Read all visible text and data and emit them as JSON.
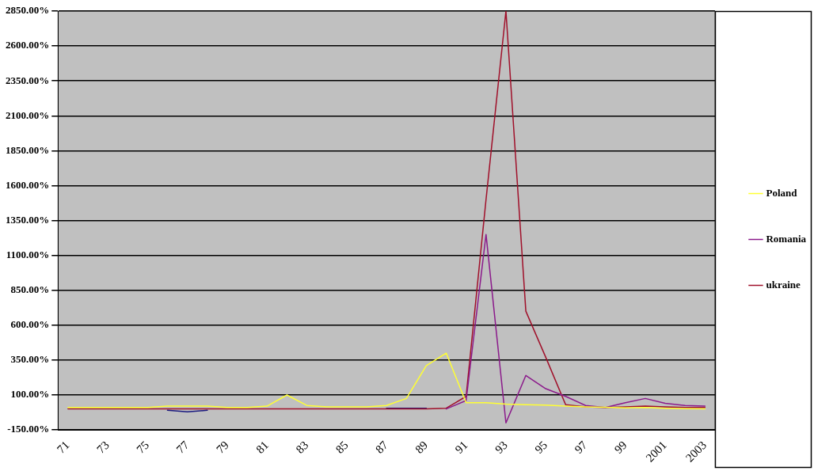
{
  "chart_data": {
    "type": "line",
    "categories": [
      "71",
      null,
      "73",
      null,
      "75",
      null,
      "77",
      null,
      "79",
      null,
      "81",
      null,
      "83",
      null,
      "85",
      null,
      "87",
      null,
      "89",
      null,
      "91",
      null,
      "93",
      null,
      "95",
      null,
      "97",
      null,
      "99",
      null,
      "2001",
      null,
      "2003"
    ],
    "series": [
      {
        "name": "Poland",
        "color": "#ffff33",
        "values": [
          10,
          10,
          10,
          10,
          10,
          20,
          20,
          20,
          10,
          10,
          20,
          100,
          25,
          15,
          15,
          15,
          25,
          75,
          310,
          400,
          45,
          45,
          35,
          30,
          28,
          20,
          15,
          12,
          7,
          10,
          5,
          2,
          1
        ]
      },
      {
        "name": "Romania",
        "color": "#8b1a8b",
        "values": [
          null,
          null,
          null,
          null,
          null,
          null,
          null,
          null,
          null,
          null,
          null,
          null,
          null,
          null,
          null,
          null,
          null,
          null,
          null,
          0,
          60,
          1250,
          -100,
          240,
          145,
          90,
          25,
          10,
          45,
          75,
          40,
          25,
          20
        ]
      },
      {
        "name": "ukraine",
        "color": "#a0102a",
        "values": [
          0,
          0,
          0,
          0,
          0,
          0,
          0,
          0,
          0,
          0,
          0,
          0,
          0,
          0,
          0,
          0,
          0,
          0,
          0,
          5,
          90,
          1500,
          2850,
          700,
          370,
          30,
          15,
          10,
          15,
          20,
          15,
          10,
          10
        ]
      },
      {
        "color": "#1a1a80",
        "values": [
          null,
          null,
          null,
          null,
          null,
          -10,
          -20,
          -10,
          null,
          null,
          null,
          null,
          null,
          null,
          null,
          null,
          5,
          5,
          5,
          null,
          null,
          null,
          null,
          null,
          null,
          null,
          null,
          null,
          null,
          null,
          null,
          null,
          null
        ]
      }
    ],
    "ylim": [
      -150,
      2850
    ],
    "yticks": [
      {
        "value": -150,
        "label": "-150.00%"
      },
      {
        "value": 100,
        "label": "100.00%"
      },
      {
        "value": 350,
        "label": "350.00%"
      },
      {
        "value": 600,
        "label": "600.00%"
      },
      {
        "value": 850,
        "label": "850.00%"
      },
      {
        "value": 1100,
        "label": "1100.00%"
      },
      {
        "value": 1350,
        "label": "1350.00%"
      },
      {
        "value": 1600,
        "label": "1600.00%"
      },
      {
        "value": 1850,
        "label": "1850.00%"
      },
      {
        "value": 2100,
        "label": "2100.00%"
      },
      {
        "value": 2350,
        "label": "2350.00%"
      },
      {
        "value": 2600,
        "label": "2600.00%"
      },
      {
        "value": 2850,
        "label": "2850.00%"
      }
    ],
    "grid": "y",
    "legend": "right",
    "marker": "none",
    "line_style": "solid"
  }
}
